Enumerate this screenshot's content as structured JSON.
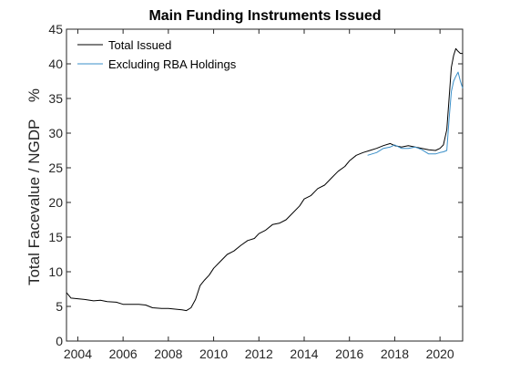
{
  "chart_data": {
    "type": "line",
    "title": "Main Funding Instruments Issued",
    "ylabel": "Total Facevalue / NGDP    %",
    "xlabel": "",
    "xlim": [
      2003.5,
      2021.0
    ],
    "ylim": [
      0,
      45
    ],
    "xticks": [
      2004,
      2006,
      2008,
      2010,
      2012,
      2014,
      2016,
      2018,
      2020
    ],
    "yticks": [
      0,
      5,
      10,
      15,
      20,
      25,
      30,
      35,
      40,
      45
    ],
    "grid": false,
    "legend": "top-left",
    "series": [
      {
        "name": "Total Issued",
        "color": "#000000",
        "x": [
          2003.5,
          2003.7,
          2004.0,
          2004.3,
          2004.7,
          2005.0,
          2005.3,
          2005.7,
          2006.0,
          2006.3,
          2006.7,
          2007.0,
          2007.3,
          2007.7,
          2008.0,
          2008.3,
          2008.6,
          2008.8,
          2009.0,
          2009.2,
          2009.4,
          2009.6,
          2009.8,
          2010.0,
          2010.3,
          2010.6,
          2010.9,
          2011.2,
          2011.5,
          2011.8,
          2012.0,
          2012.3,
          2012.6,
          2012.9,
          2013.2,
          2013.5,
          2013.8,
          2014.0,
          2014.3,
          2014.6,
          2014.9,
          2015.2,
          2015.5,
          2015.8,
          2016.0,
          2016.3,
          2016.6,
          2016.9,
          2017.2,
          2017.5,
          2017.8,
          2018.0,
          2018.3,
          2018.6,
          2018.9,
          2019.2,
          2019.5,
          2019.8,
          2020.0,
          2020.15,
          2020.3,
          2020.4,
          2020.5,
          2020.6,
          2020.7,
          2020.8,
          2020.9,
          2021.0
        ],
        "values": [
          7.0,
          6.2,
          6.1,
          6.0,
          5.8,
          5.9,
          5.7,
          5.6,
          5.3,
          5.3,
          5.3,
          5.2,
          4.8,
          4.7,
          4.7,
          4.6,
          4.5,
          4.4,
          4.8,
          6.0,
          8.0,
          8.8,
          9.5,
          10.5,
          11.5,
          12.5,
          13.0,
          13.8,
          14.5,
          14.8,
          15.5,
          16.0,
          16.8,
          17.0,
          17.5,
          18.5,
          19.5,
          20.5,
          21.0,
          22.0,
          22.5,
          23.5,
          24.5,
          25.2,
          26.0,
          26.8,
          27.2,
          27.5,
          27.8,
          28.2,
          28.5,
          28.2,
          28.0,
          28.2,
          28.0,
          27.8,
          27.6,
          27.5,
          27.8,
          28.3,
          30.5,
          35.0,
          39.5,
          41.2,
          42.2,
          41.8,
          41.5,
          41.5
        ]
      },
      {
        "name": "Excluding RBA Holdings",
        "color": "#3a8fc8",
        "x": [
          2016.8,
          2017.2,
          2017.5,
          2017.8,
          2018.0,
          2018.3,
          2018.6,
          2018.9,
          2019.2,
          2019.5,
          2019.8,
          2020.0,
          2020.15,
          2020.3,
          2020.4,
          2020.5,
          2020.6,
          2020.7,
          2020.8,
          2020.9,
          2021.0
        ],
        "values": [
          26.8,
          27.2,
          27.8,
          28.0,
          28.3,
          27.8,
          27.8,
          28.0,
          27.6,
          27.0,
          27.0,
          27.2,
          27.3,
          27.5,
          32.0,
          36.0,
          37.5,
          38.2,
          38.8,
          37.5,
          36.5
        ]
      }
    ]
  }
}
